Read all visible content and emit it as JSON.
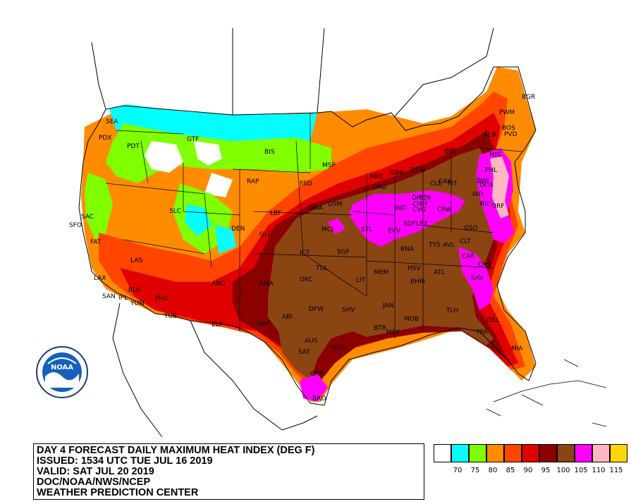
{
  "title": {
    "line1": "DAY 4 FORECAST DAILY MAXIMUM HEAT INDEX (DEG F)",
    "line2": "ISSUED: 1534 UTC TUE JUL 16 2019",
    "line3": "VALID: SAT JUL 20 2019",
    "line4": "DOC/NOAA/NWS/NCEP",
    "line5": "WEATHER PREDICTION CENTER"
  },
  "logo": {
    "text": "NOAA"
  },
  "legend": {
    "colors": [
      "#ffffff",
      "#00ffff",
      "#7fff00",
      "#ff8c00",
      "#ff4500",
      "#e00000",
      "#8b0000",
      "#8b4513",
      "#ff00ff",
      "#ffb6c1",
      "#ffd700"
    ],
    "labels": [
      "70",
      "75",
      "80",
      "85",
      "90",
      "95",
      "100",
      "105",
      "110",
      "115"
    ]
  },
  "stations": [
    {
      "id": "SEA"
    },
    {
      "id": "PDX"
    },
    {
      "id": "PDT"
    },
    {
      "id": "GTF"
    },
    {
      "id": "BIS"
    },
    {
      "id": "MSP"
    },
    {
      "id": "RAP"
    },
    {
      "id": "FSD"
    },
    {
      "id": "SLC"
    },
    {
      "id": "LBF"
    },
    {
      "id": "OMA"
    },
    {
      "id": "DSM"
    },
    {
      "id": "DEN"
    },
    {
      "id": "GLD"
    },
    {
      "id": "MCI"
    },
    {
      "id": "STL"
    },
    {
      "id": "ICT"
    },
    {
      "id": "SGF"
    },
    {
      "id": "TUL"
    },
    {
      "id": "OKC"
    },
    {
      "id": "AMA"
    },
    {
      "id": "ABQ"
    },
    {
      "id": "SAC"
    },
    {
      "id": "SFO"
    },
    {
      "id": "FAT"
    },
    {
      "id": "LAS"
    },
    {
      "id": "LAX"
    },
    {
      "id": "SAN"
    },
    {
      "id": "BLH"
    },
    {
      "id": "IPL"
    },
    {
      "id": "YUM"
    },
    {
      "id": "PHX"
    },
    {
      "id": "TUS"
    },
    {
      "id": "ELP"
    },
    {
      "id": "MAF"
    },
    {
      "id": "ABI"
    },
    {
      "id": "DFW"
    },
    {
      "id": "SHV"
    },
    {
      "id": "AUS"
    },
    {
      "id": "SAT"
    },
    {
      "id": "HOU"
    },
    {
      "id": "CRP"
    },
    {
      "id": "BRO"
    },
    {
      "id": "LIT"
    },
    {
      "id": "MEM"
    },
    {
      "id": "JAN"
    },
    {
      "id": "BTR"
    },
    {
      "id": "MSY"
    },
    {
      "id": "MOB"
    },
    {
      "id": "BHM"
    },
    {
      "id": "HSV"
    },
    {
      "id": "ATL"
    },
    {
      "id": "TLH"
    },
    {
      "id": "TPA"
    },
    {
      "id": "ORL"
    },
    {
      "id": "MIA"
    },
    {
      "id": "SAV"
    },
    {
      "id": "CHS"
    },
    {
      "id": "CAE"
    },
    {
      "id": "CLT"
    },
    {
      "id": "GSO"
    },
    {
      "id": "TYS"
    },
    {
      "id": "AVL"
    },
    {
      "id": "BNA"
    },
    {
      "id": "EVV"
    },
    {
      "id": "SDF"
    },
    {
      "id": "LEX"
    },
    {
      "id": "IND"
    },
    {
      "id": "CVG"
    },
    {
      "id": "CMH"
    },
    {
      "id": "DAY"
    },
    {
      "id": "TZR"
    },
    {
      "id": "ORD"
    },
    {
      "id": "MKE"
    },
    {
      "id": "GRR"
    },
    {
      "id": "DTW"
    },
    {
      "id": "CLE"
    },
    {
      "id": "CAK"
    },
    {
      "id": "PIT"
    },
    {
      "id": "CRW"
    },
    {
      "id": "IAD"
    },
    {
      "id": "DCA"
    },
    {
      "id": "BWI"
    },
    {
      "id": "PHL"
    },
    {
      "id": "NYC"
    },
    {
      "id": "ALB"
    },
    {
      "id": "BOS"
    },
    {
      "id": "PVD"
    },
    {
      "id": "PWM"
    },
    {
      "id": "BGR"
    },
    {
      "id": "RIC"
    },
    {
      "id": "ORF"
    },
    {
      "id": "BUF"
    }
  ]
}
